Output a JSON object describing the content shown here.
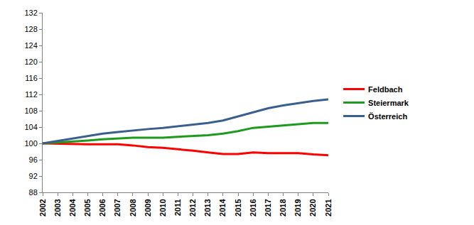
{
  "chart_data": {
    "type": "line",
    "x": [
      2002,
      2003,
      2004,
      2005,
      2006,
      2007,
      2008,
      2009,
      2010,
      2011,
      2012,
      2013,
      2014,
      2015,
      2016,
      2017,
      2018,
      2019,
      2020,
      2021
    ],
    "series": [
      {
        "name": "Feldbach",
        "color": "#ff0000",
        "values": [
          100,
          99.9,
          99.8,
          99.8,
          99.8,
          99.8,
          99.5,
          99.1,
          98.9,
          98.6,
          98.2,
          97.8,
          97.4,
          97.4,
          97.8,
          97.6,
          97.6,
          97.6,
          97.3,
          97.1
        ]
      },
      {
        "name": "Steiermark",
        "color": "#1e9a1e",
        "values": [
          100,
          100.2,
          100.4,
          100.7,
          101.0,
          101.2,
          101.4,
          101.4,
          101.4,
          101.6,
          101.8,
          102.0,
          102.4,
          103.0,
          103.8,
          104.1,
          104.5,
          104.7,
          105.0,
          105.0
        ]
      },
      {
        "name": "Österreich",
        "color": "#3a5f8f",
        "values": [
          100,
          100.6,
          101.1,
          101.8,
          102.4,
          102.8,
          103.2,
          103.5,
          103.8,
          104.2,
          104.5,
          105.0,
          105.6,
          106.6,
          107.7,
          108.6,
          109.3,
          109.9,
          110.4,
          110.8
        ]
      }
    ],
    "xlim": [
      2002,
      2021
    ],
    "xticks": [
      2002,
      2003,
      2004,
      2005,
      2006,
      2007,
      2008,
      2009,
      2010,
      2011,
      2012,
      2013,
      2014,
      2015,
      2016,
      2017,
      2018,
      2019,
      2020,
      2021
    ],
    "ylim": [
      88,
      132
    ],
    "yticks": [
      88,
      92,
      96,
      100,
      104,
      108,
      112,
      116,
      120,
      124,
      128,
      132
    ],
    "grid": false,
    "legend": "right"
  }
}
